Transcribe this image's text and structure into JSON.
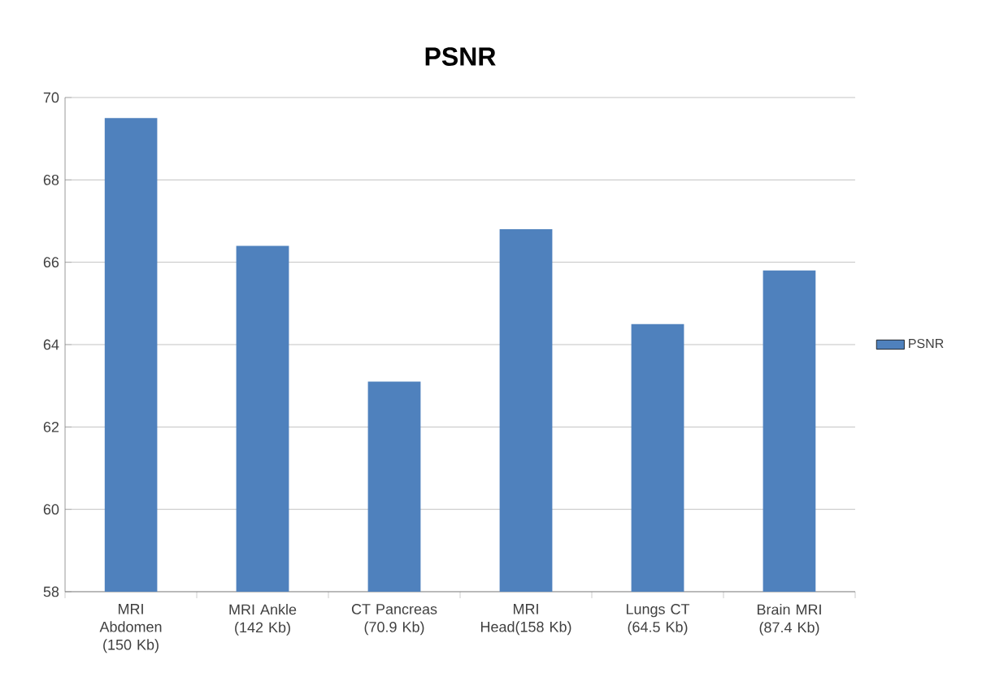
{
  "chart_data": {
    "type": "bar",
    "title": "PSNR",
    "categories": [
      "MRI Abdomen (150 Kb)",
      "MRI Ankle (142 Kb)",
      "CT Pancreas (70.9 Kb)",
      "MRI Head(158 Kb)",
      "Lungs CT (64.5 Kb)",
      "Brain MRI (87.4 Kb)"
    ],
    "series": [
      {
        "name": "PSNR",
        "color": "#4f81bd",
        "values": [
          69.5,
          66.4,
          63.1,
          66.8,
          64.5,
          65.8
        ]
      }
    ],
    "ylim": [
      58,
      70
    ],
    "yticks": [
      58,
      60,
      62,
      64,
      66,
      68,
      70
    ],
    "grid": "y",
    "legend": "right"
  }
}
